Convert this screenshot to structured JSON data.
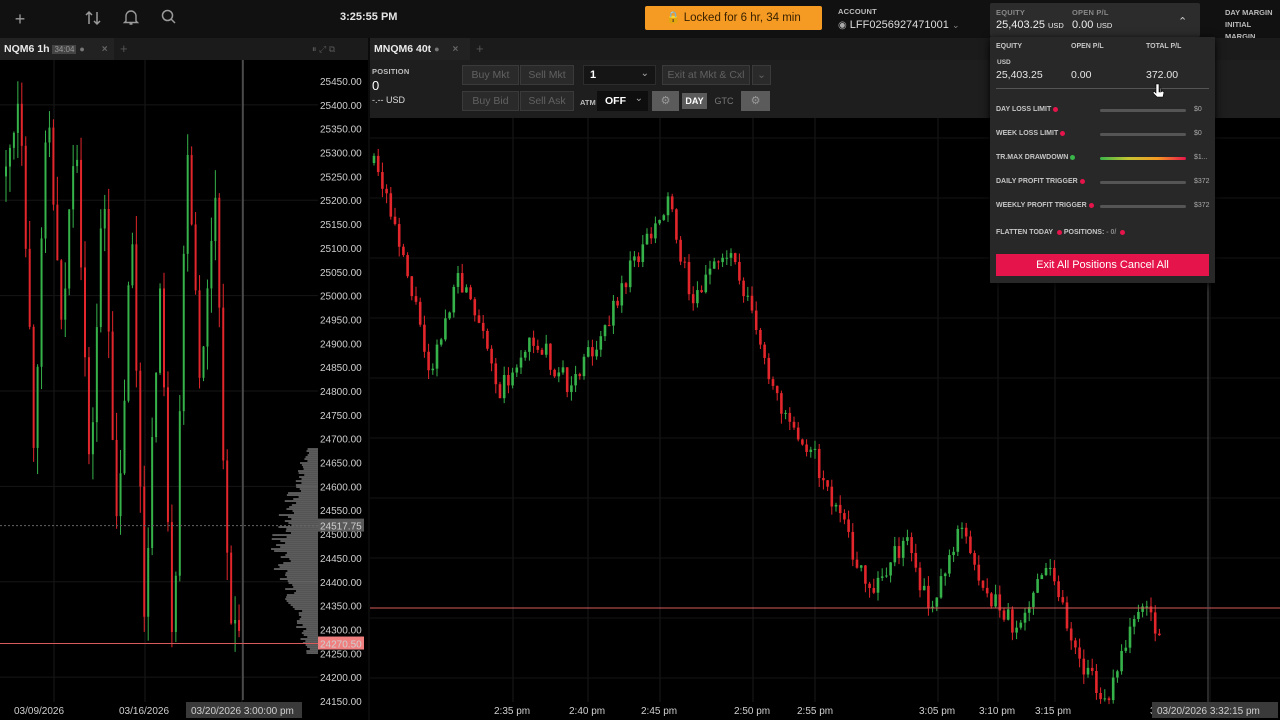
{
  "topbar": {
    "clock": "3:25:55 PM",
    "locked_text": "Locked for 6 hr, 34 min",
    "account_label": "ACCOUNT",
    "account_number": "LFF0256927471001",
    "equity_label": "EQUITY",
    "equity_value": "25,403.25",
    "equity_currency": "USD",
    "openpl_label": "OPEN P/L",
    "openpl_value": "0.00",
    "openpl_currency": "USD",
    "day_margin_label": "DAY MARGIN",
    "initial_margin_label": "INITIAL MARGIN",
    "icons": [
      "plus-icon",
      "arrows-icon",
      "bell-icon",
      "search-icon"
    ]
  },
  "left_chart": {
    "tab_title": "NQM6 1h",
    "tab_timer": "34:04",
    "current_price": "24517.75",
    "last_price": "24270.50",
    "price_ticks": [
      "25450.00",
      "25400.00",
      "25350.00",
      "25300.00",
      "25250.00",
      "25200.00",
      "25150.00",
      "25100.00",
      "25050.00",
      "25000.00",
      "24950.00",
      "24900.00",
      "24850.00",
      "24800.00",
      "24750.00",
      "24700.00",
      "24650.00",
      "24600.00",
      "24550.00",
      "24500.00",
      "24450.00",
      "24400.00",
      "24350.00",
      "24300.00",
      "24250.00",
      "24200.00",
      "24150.00"
    ],
    "date_ticks": [
      "03/09/2026",
      "03/16/2026"
    ],
    "crosshair_date": "03/20/2026 3:00:00 pm"
  },
  "main_chart": {
    "tab_title": "MNQM6 40t",
    "position_label": "POSITION",
    "position_value": "0",
    "position_pnl": "-.-- USD",
    "buy_mkt": "Buy Mkt",
    "sell_mkt": "Sell Mkt",
    "qty": "1",
    "exit_btn": "Exit at Mkt & Cxl",
    "buy_bid": "Buy Bid",
    "sell_ask": "Sell Ask",
    "atm_label": "ATM",
    "atm_value": "OFF",
    "tif_day": "DAY",
    "tif_gtc": "GTC",
    "time_ticks": [
      "2:35 pm",
      "2:40 pm",
      "2:45 pm",
      "2:50 pm",
      "2:55 pm",
      "3:05 pm",
      "3:10 pm",
      "3:15 pm",
      "3:"
    ],
    "crosshair_time": "03/20/2026 3:32:15 pm"
  },
  "account_popup": {
    "equity_label": "EQUITY",
    "openpl_label": "OPEN P/L",
    "totalpl_label": "TOTAL P/L",
    "currency": "USD",
    "equity": "25,403.25",
    "openpl": "0.00",
    "totalpl": "372.00",
    "rows": [
      {
        "label": "DAY LOSS LIMIT",
        "value": "$0",
        "dot": "#e5144a"
      },
      {
        "label": "WEEK LOSS LIMIT",
        "value": "$0",
        "dot": "#e5144a"
      },
      {
        "label": "TR.MAX DRAWDOWN",
        "value": "$1...",
        "dot": "#3ab54a"
      },
      {
        "label": "DAILY PROFIT TRIGGER",
        "value": "$372",
        "dot": "#e5144a"
      },
      {
        "label": "WEEKLY PROFIT TRIGGER",
        "value": "$372",
        "dot": "#e5144a"
      }
    ],
    "flatten_label": "FLATTEN TODAY",
    "positions_label": "POSITIONS:",
    "positions_value": "- 0/",
    "exit_all": "Exit All Positions Cancel All"
  }
}
